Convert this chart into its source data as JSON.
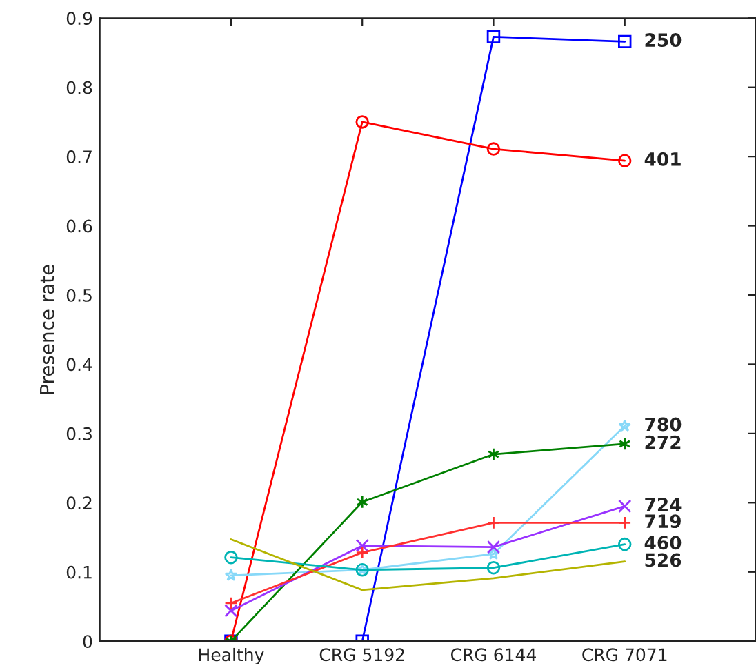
{
  "chart_data": {
    "type": "line",
    "ylabel": "Presence rate",
    "categories": [
      "Healthy",
      "CRG 5192",
      "CRG 6144",
      "CRG 7071"
    ],
    "ylim": [
      0,
      0.9
    ],
    "yticks": [
      0,
      0.1,
      0.2,
      0.3,
      0.4,
      0.5,
      0.6,
      0.7,
      0.8,
      0.9
    ],
    "grid": false,
    "legend": false,
    "series": [
      {
        "name": "250",
        "color": "#0000ff",
        "marker": "square",
        "values": [
          0,
          0,
          0.873,
          0.866
        ]
      },
      {
        "name": "401",
        "color": "#ff0000",
        "marker": "circle",
        "values": [
          0,
          0.75,
          0.711,
          0.694
        ]
      },
      {
        "name": "780",
        "color": "#87d8f8",
        "marker": "star",
        "values": [
          0.095,
          0.103,
          0.126,
          0.311
        ]
      },
      {
        "name": "272",
        "color": "#008000",
        "marker": "cross",
        "values": [
          0,
          0.201,
          0.27,
          0.285
        ]
      },
      {
        "name": "724",
        "color": "#9933ff",
        "marker": "x",
        "values": [
          0.044,
          0.138,
          0.136,
          0.195
        ]
      },
      {
        "name": "719",
        "color": "#ff3030",
        "marker": "plus",
        "values": [
          0.055,
          0.128,
          0.171,
          0.171
        ]
      },
      {
        "name": "460",
        "color": "#00b4b4",
        "marker": "circle",
        "values": [
          0.121,
          0.103,
          0.106,
          0.14
        ]
      },
      {
        "name": "526",
        "color": "#b4b400",
        "marker": "none",
        "values": [
          0.147,
          0.074,
          0.091,
          0.115
        ]
      }
    ]
  }
}
